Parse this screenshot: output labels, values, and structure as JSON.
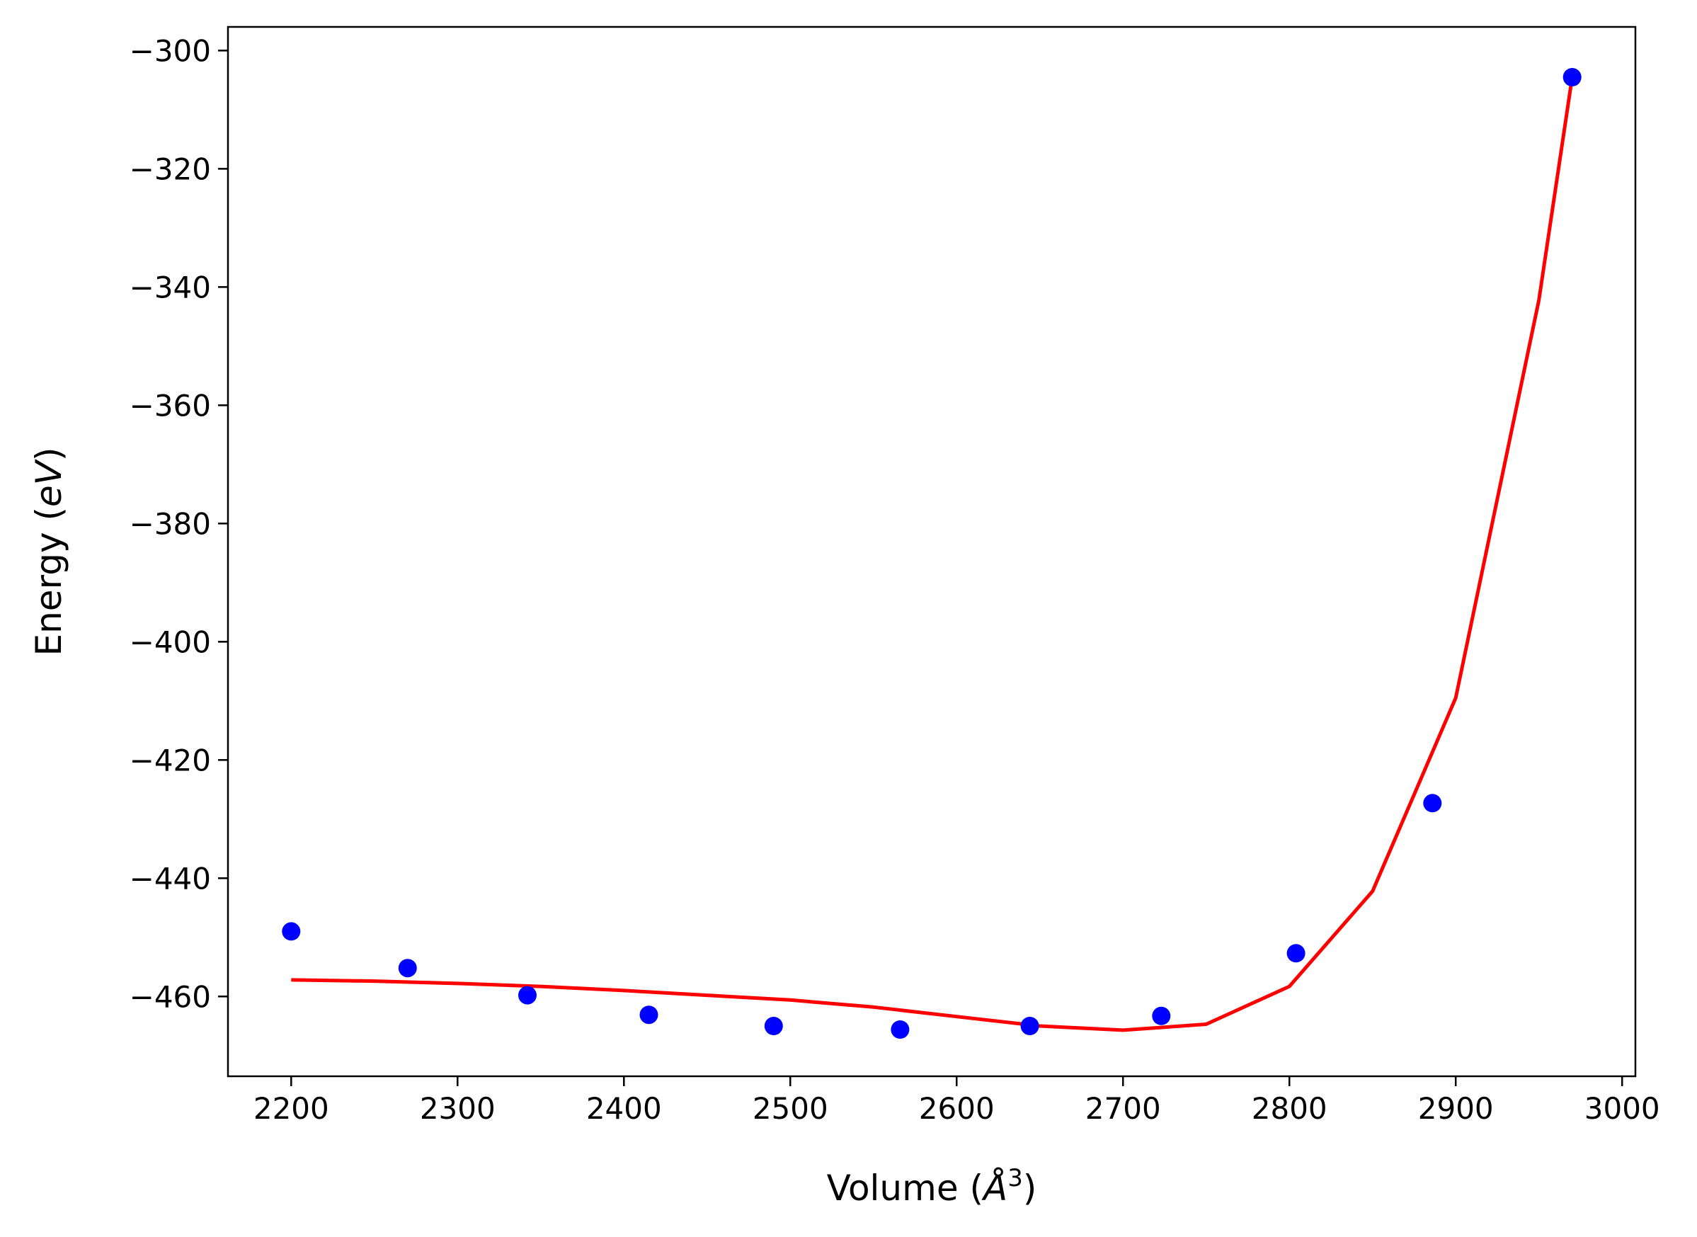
{
  "chart_data": {
    "type": "scatter",
    "xlabel_text": "Volume (",
    "xlabel_symbol": "Å",
    "xlabel_sup": "3",
    "xlabel_close": ")",
    "ylabel_text": "Energy (",
    "ylabel_unit": "eV",
    "ylabel_close": ")",
    "xlim": [
      2162,
      3008
    ],
    "ylim": [
      -473.5,
      -296
    ],
    "xticks": [
      2200,
      2300,
      2400,
      2500,
      2600,
      2700,
      2800,
      2900,
      3000
    ],
    "yticks": [
      -300,
      -320,
      -340,
      -360,
      -380,
      -400,
      -420,
      -440,
      -460
    ],
    "grid": false,
    "legend": "none",
    "series": [
      {
        "kind": "points",
        "color": "#0000ff",
        "x": [
          2200,
          2270,
          2342,
          2415,
          2490,
          2566,
          2644,
          2723,
          2804,
          2886,
          2970
        ],
        "y": [
          -449,
          -455.2,
          -459.8,
          -463.1,
          -465,
          -465.6,
          -465,
          -463.3,
          -452.7,
          -427.3,
          -304.5
        ]
      },
      {
        "kind": "fit",
        "color": "#ff0000",
        "x": [
          2200,
          2250,
          2300,
          2350,
          2400,
          2450,
          2500,
          2550,
          2600,
          2650,
          2700,
          2750,
          2800,
          2850,
          2900,
          2950,
          2970
        ],
        "y": [
          -457.2,
          -457.4,
          -457.8,
          -458.3,
          -459,
          -459.8,
          -460.6,
          -461.8,
          -463.4,
          -465,
          -465.7,
          -464.7,
          -458.3,
          -442.2,
          -409.5,
          -342.2,
          -304.5
        ]
      }
    ]
  }
}
